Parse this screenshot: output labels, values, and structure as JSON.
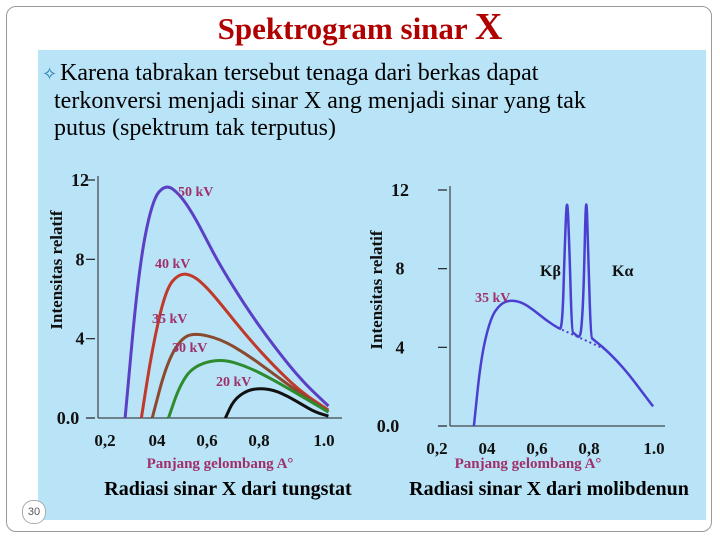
{
  "slide": {
    "title_main": "Spektrogram sinar ",
    "title_x": "X",
    "bullet_line1": "Karena tabrakan tersebut tenaga dari berkas dapat",
    "bullet_line2": "terkonversi menjadi sinar X ang menjadi sinar yang tak",
    "bullet_line3": "putus (spektrum tak terputus)",
    "slide_number": "30"
  },
  "colors": {
    "title": "#b00000",
    "panel": "#b9e3f6",
    "curve_50kv": "#5b3fc4",
    "curve_40kv": "#c0392b",
    "curve_35kv": "#8b4a2f",
    "curve_30kv": "#2e8b2e",
    "curve_20kv": "#111111",
    "curve_mo": "#4a3fd0",
    "labels": "#a0306a",
    "caption": "#1a1a8c"
  },
  "chart_data": [
    {
      "type": "line",
      "caption": "Radiasi sinar X dari tungstat",
      "xlabel": "Panjang gelombang A°",
      "ylabel": "Intensitas relatif",
      "xlim": [
        0.15,
        1.05
      ],
      "ylim": [
        0,
        12
      ],
      "x_ticks": [
        "0,2",
        "04",
        "0,6",
        "0,8",
        "1.0"
      ],
      "y_ticks": [
        "0.0",
        "4",
        "8",
        "12"
      ],
      "series": [
        {
          "name": "50 kV",
          "x": [
            0.25,
            0.3,
            0.35,
            0.4,
            0.45,
            0.5,
            0.55,
            0.6,
            0.7,
            0.8,
            0.9,
            1.0
          ],
          "values": [
            0,
            7.5,
            11.0,
            11.8,
            11.3,
            10.3,
            9.0,
            7.7,
            5.5,
            3.6,
            1.9,
            0.6
          ]
        },
        {
          "name": "40 kV",
          "x": [
            0.31,
            0.35,
            0.4,
            0.45,
            0.5,
            0.55,
            0.6,
            0.7,
            0.8,
            0.9,
            1.0
          ],
          "values": [
            0,
            3.5,
            6.5,
            7.3,
            7.2,
            6.6,
            5.8,
            4.1,
            2.6,
            1.3,
            0.4
          ]
        },
        {
          "name": "35 kV",
          "x": [
            0.35,
            0.4,
            0.45,
            0.5,
            0.6,
            0.7,
            0.8,
            0.9,
            1.0
          ],
          "values": [
            0,
            2.6,
            3.9,
            4.3,
            4.0,
            3.2,
            2.2,
            1.2,
            0.3
          ]
        },
        {
          "name": "30 kV",
          "x": [
            0.41,
            0.45,
            0.5,
            0.6,
            0.7,
            0.8,
            0.9,
            1.0
          ],
          "values": [
            0,
            1.6,
            2.6,
            3.0,
            2.6,
            1.9,
            1.1,
            0.3
          ]
        },
        {
          "name": "20 kV",
          "x": [
            0.62,
            0.65,
            0.7,
            0.75,
            0.8,
            0.85,
            0.9,
            0.95,
            1.0
          ],
          "values": [
            0,
            0.9,
            1.4,
            1.5,
            1.4,
            1.1,
            0.7,
            0.3,
            0.1
          ]
        }
      ]
    },
    {
      "type": "line",
      "caption": "Radiasi sinar X dari molibdenun",
      "xlabel": "Panjang gelombang A°",
      "ylabel": "Intensitas relatif",
      "xlim": [
        0.15,
        1.05
      ],
      "ylim": [
        0,
        12
      ],
      "x_ticks": [
        "0,2",
        "04",
        "0,6",
        "0,8",
        "1.0"
      ],
      "y_ticks": [
        "0.0",
        "4",
        "8",
        "12"
      ],
      "annotations": [
        "Kβ",
        "Kα"
      ],
      "series": [
        {
          "name": "35 kV",
          "x": [
            0.25,
            0.28,
            0.32,
            0.36,
            0.4,
            0.45,
            0.5,
            0.55,
            0.6,
            0.62,
            0.63,
            0.64,
            0.65,
            0.66,
            0.67,
            0.68,
            0.69,
            0.7,
            0.71,
            0.72,
            0.73,
            0.74,
            0.75,
            0.77,
            0.8,
            0.85,
            0.9,
            0.95,
            1.0
          ],
          "values": [
            0,
            3.5,
            5.5,
            6.2,
            6.4,
            6.3,
            5.9,
            5.4,
            5.0,
            4.9,
            9.0,
            12.0,
            9.0,
            4.8,
            4.7,
            4.6,
            4.5,
            4.8,
            7.0,
            12.5,
            8.0,
            4.5,
            4.4,
            4.2,
            3.9,
            3.3,
            2.6,
            1.8,
            1.0
          ]
        }
      ]
    }
  ]
}
